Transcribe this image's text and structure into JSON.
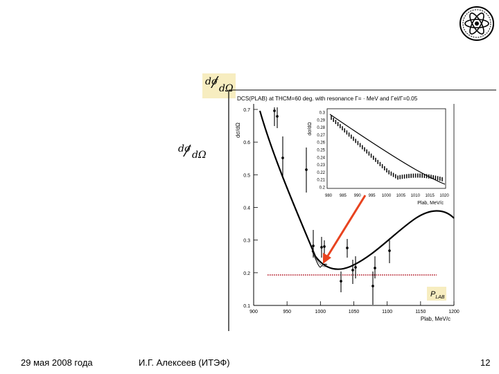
{
  "formula_top": {
    "num": "dσ",
    "den": "dΩ"
  },
  "formula_left": {
    "num": "dσ",
    "den": "dΩ"
  },
  "footer": {
    "date": "29 мая 2008 года",
    "author": "И.Г. Алексеев (ИТЭФ)",
    "page": "12"
  },
  "plot": {
    "title": "DCS(PLAB) at THCM=60 deg. with resonance Γ= · MeV and Γel/Γ=0.05",
    "ylabel": "dσ/dΩ",
    "xlabel": "Plab, MeV/c",
    "plab_label": "P_LAB",
    "x_ticks": [
      "900",
      "950",
      "1000",
      "1050",
      "1100",
      "1150",
      "1200"
    ],
    "y_ticks": [
      "0.1",
      "0.2",
      "0.3",
      "0.4",
      "0.5",
      "0.6",
      "0.7"
    ],
    "inset_ylabel": "dσ/dΩ",
    "inset_xlabel": "Plab, MeV/c",
    "inset_x_ticks": [
      "980",
      "985",
      "990",
      "995",
      "1000",
      "1005",
      "1010",
      "1015",
      "1020"
    ],
    "inset_y_ticks": [
      "0.2",
      "0.21",
      "0.22",
      "0.23",
      "0.24",
      "0.25",
      "0.26",
      "0.27",
      "0.28",
      "0.29",
      "0.3"
    ]
  },
  "colors": {
    "arrow": "#e8431f",
    "dotted_line": "#b01020",
    "highlight": "#f7edc0"
  },
  "logo_icon": "itep-atom-logo-icon"
}
